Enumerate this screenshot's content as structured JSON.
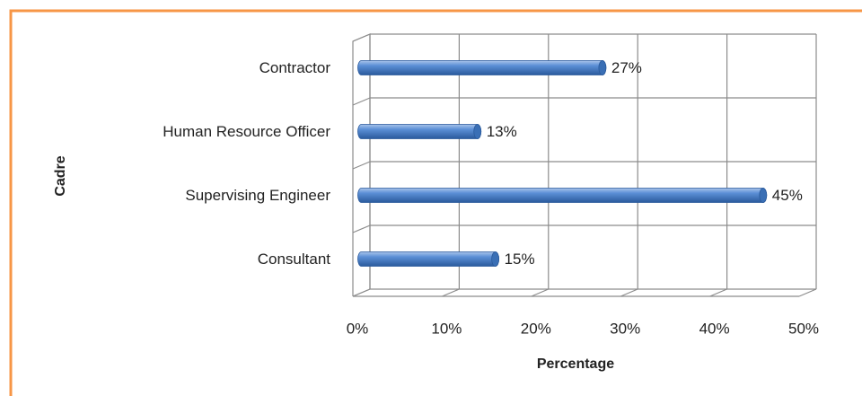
{
  "chart_data": {
    "type": "bar",
    "orientation": "horizontal",
    "x_label": "Percentage",
    "y_label": "Cadre",
    "categories": [
      "Contractor",
      "Human Resource Officer",
      "Supervising Engineer",
      "Consultant"
    ],
    "values": [
      27,
      13,
      45,
      15
    ],
    "value_labels": [
      "27%",
      "13%",
      "45%",
      "15%"
    ],
    "color": "#4f81bd",
    "xlim": [
      0,
      50
    ],
    "xticks": [
      {
        "value": 0,
        "label": "0%"
      },
      {
        "value": 10,
        "label": "10%"
      },
      {
        "value": 20,
        "label": "20%"
      },
      {
        "value": 30,
        "label": "30%"
      },
      {
        "value": 40,
        "label": "40%"
      },
      {
        "value": 50,
        "label": "50%"
      }
    ],
    "grid": true
  }
}
